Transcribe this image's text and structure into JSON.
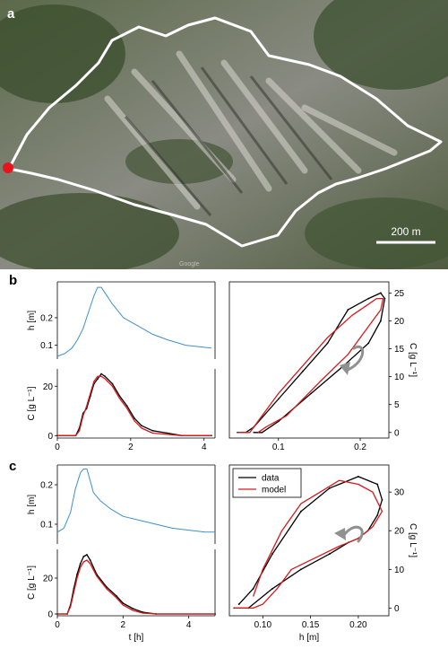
{
  "panel_a": {
    "letter": "a",
    "scale_bar_label": "200 m",
    "watermark": "Google",
    "outlet_color": "#e8141c",
    "outline_color": "#ffffff"
  },
  "chart_data": [
    {
      "id": "b-h",
      "panel": "b",
      "type": "line",
      "ylabel": "h [m]",
      "xlim": [
        0,
        4.3
      ],
      "ylim": [
        0.05,
        0.33
      ],
      "yticks": [
        0.1,
        0.2
      ],
      "ytick_labels": [
        "0.1",
        "0.2"
      ],
      "series": [
        {
          "color": "#3d8fd1",
          "x": [
            0,
            0.2,
            0.4,
            0.55,
            0.7,
            0.8,
            0.9,
            1.0,
            1.1,
            1.2,
            1.3,
            1.5,
            1.8,
            2.2,
            2.6,
            3.0,
            3.5,
            4.2
          ],
          "y": [
            0.06,
            0.07,
            0.09,
            0.12,
            0.16,
            0.2,
            0.24,
            0.28,
            0.31,
            0.31,
            0.29,
            0.25,
            0.2,
            0.17,
            0.14,
            0.12,
            0.1,
            0.09
          ]
        }
      ]
    },
    {
      "id": "b-C",
      "panel": "b",
      "type": "line",
      "ylabel": "C [g L⁻¹]",
      "xlim": [
        0,
        4.3
      ],
      "ylim": [
        -1,
        27
      ],
      "yticks": [
        0,
        20
      ],
      "ytick_labels": [
        "0",
        "20"
      ],
      "xticks": [
        0,
        2,
        4
      ],
      "xtick_labels": [
        "0",
        "2",
        "4"
      ],
      "series": [
        {
          "name": "data",
          "color": "#000000",
          "x": [
            0,
            0.5,
            0.6,
            0.7,
            0.8,
            0.9,
            1.0,
            1.1,
            1.2,
            1.3,
            1.5,
            1.7,
            1.9,
            2.1,
            2.3,
            2.6,
            3.0,
            3.4,
            4.2
          ],
          "y": [
            0,
            0,
            3,
            9,
            11,
            16,
            21,
            23,
            25,
            24,
            21,
            16,
            12,
            7,
            4,
            2,
            1,
            0,
            0
          ]
        },
        {
          "name": "model",
          "color": "#d7191c",
          "x": [
            0,
            0.5,
            0.6,
            0.7,
            0.8,
            0.9,
            1.0,
            1.1,
            1.2,
            1.3,
            1.5,
            1.7,
            1.9,
            2.1,
            2.3,
            2.6,
            3.0,
            3.4,
            4.2
          ],
          "y": [
            0,
            0,
            2,
            8,
            12,
            17,
            22,
            24,
            24,
            23,
            20,
            15,
            11,
            6,
            3,
            1,
            0.5,
            0,
            0
          ]
        }
      ]
    },
    {
      "id": "b-hys",
      "panel": "b",
      "type": "line",
      "ylabel": "C [g L⁻¹]",
      "xlim": [
        0.04,
        0.235
      ],
      "ylim": [
        -1,
        27
      ],
      "xticks": [
        0.1,
        0.2
      ],
      "xtick_labels": [
        "0.1",
        "0.2"
      ],
      "yticks": [
        0,
        5,
        10,
        15,
        20,
        25
      ],
      "ytick_labels": [
        "0",
        "5",
        "10",
        "15",
        "20",
        "25"
      ],
      "series": [
        {
          "name": "data",
          "color": "#000000",
          "x": [
            0.05,
            0.06,
            0.07,
            0.1,
            0.13,
            0.16,
            0.185,
            0.21,
            0.225,
            0.23,
            0.225,
            0.21,
            0.18,
            0.14,
            0.1,
            0.08,
            0.07
          ],
          "y": [
            0,
            0,
            1,
            6,
            11,
            16,
            22,
            24,
            25,
            24,
            20,
            16,
            12,
            7,
            2,
            0,
            0
          ]
        },
        {
          "name": "model",
          "color": "#d7191c",
          "x": [
            0.05,
            0.065,
            0.075,
            0.1,
            0.13,
            0.16,
            0.19,
            0.21,
            0.22,
            0.228,
            0.225,
            0.21,
            0.185,
            0.15,
            0.11,
            0.085,
            0.075
          ],
          "y": [
            0,
            0,
            2,
            7,
            12,
            17,
            21,
            23,
            24,
            24,
            22,
            19,
            14,
            9,
            3,
            1,
            0
          ]
        }
      ]
    },
    {
      "id": "c-h",
      "panel": "c",
      "type": "line",
      "ylabel": "h [m]",
      "xlim": [
        0,
        4.8
      ],
      "ylim": [
        0.05,
        0.25
      ],
      "yticks": [
        0.1,
        0.2
      ],
      "ytick_labels": [
        "0.1",
        "0.2"
      ],
      "series": [
        {
          "color": "#3d8fd1",
          "x": [
            0,
            0.2,
            0.4,
            0.55,
            0.7,
            0.8,
            0.9,
            1.0,
            1.1,
            1.3,
            1.6,
            2.0,
            2.5,
            3.0,
            3.5,
            4.0,
            4.5,
            4.8
          ],
          "y": [
            0.08,
            0.09,
            0.13,
            0.19,
            0.23,
            0.24,
            0.24,
            0.21,
            0.18,
            0.16,
            0.14,
            0.12,
            0.11,
            0.1,
            0.09,
            0.085,
            0.08,
            0.08
          ]
        }
      ]
    },
    {
      "id": "c-C",
      "panel": "c",
      "type": "line",
      "xlabel": "t [h]",
      "ylabel": "C [g L⁻¹]",
      "xlim": [
        0,
        4.8
      ],
      "ylim": [
        -1,
        36
      ],
      "yticks": [
        0,
        20
      ],
      "ytick_labels": [
        "0",
        "20"
      ],
      "xticks": [
        0,
        2,
        4
      ],
      "xtick_labels": [
        "0",
        "2",
        "4"
      ],
      "series": [
        {
          "name": "data",
          "color": "#000000",
          "x": [
            0,
            0.3,
            0.4,
            0.5,
            0.6,
            0.7,
            0.8,
            0.9,
            1.0,
            1.2,
            1.5,
            1.8,
            2.0,
            2.3,
            2.6,
            3.0,
            4.8
          ],
          "y": [
            0,
            0,
            5,
            14,
            22,
            28,
            32,
            33,
            30,
            22,
            15,
            10,
            6,
            3,
            1,
            0,
            0
          ]
        },
        {
          "name": "model",
          "color": "#d7191c",
          "x": [
            0,
            0.3,
            0.4,
            0.5,
            0.6,
            0.7,
            0.8,
            0.9,
            1.0,
            1.2,
            1.5,
            1.8,
            2.0,
            2.3,
            2.6,
            3.0,
            4.8
          ],
          "y": [
            0,
            0,
            4,
            12,
            20,
            26,
            29,
            30,
            28,
            21,
            14,
            9,
            5,
            2,
            0.5,
            0,
            0
          ]
        }
      ]
    },
    {
      "id": "c-hys",
      "panel": "c",
      "type": "line",
      "xlabel": "h [m]",
      "ylabel": "C [g L⁻¹]",
      "xlim": [
        0.065,
        0.232
      ],
      "ylim": [
        -2,
        37
      ],
      "xticks": [
        0.1,
        0.15,
        0.2
      ],
      "xtick_labels": [
        "0.10",
        "0.15",
        "0.20"
      ],
      "yticks": [
        0,
        10,
        20,
        30
      ],
      "ytick_labels": [
        "0",
        "10",
        "20",
        "30"
      ],
      "legend": {
        "placement": "top-left",
        "entries": [
          "data",
          "model"
        ]
      },
      "series": [
        {
          "name": "data",
          "color": "#000000",
          "x": [
            0.07,
            0.085,
            0.11,
            0.14,
            0.17,
            0.19,
            0.2,
            0.21,
            0.22,
            0.225,
            0.22,
            0.2,
            0.17,
            0.14,
            0.11,
            0.09,
            0.075
          ],
          "y": [
            0,
            0,
            5,
            10,
            14,
            17,
            18,
            20,
            24,
            28,
            32,
            34,
            31,
            25,
            14,
            5,
            1
          ]
        },
        {
          "name": "model",
          "color": "#d7191c",
          "x": [
            0.07,
            0.09,
            0.1,
            0.115,
            0.13,
            0.155,
            0.18,
            0.2,
            0.215,
            0.225,
            0.215,
            0.2,
            0.18,
            0.16,
            0.14,
            0.12,
            0.1,
            0.09
          ],
          "y": [
            0,
            0,
            1,
            5,
            10,
            13,
            16,
            18,
            21,
            25,
            30,
            32,
            33,
            30,
            27,
            20,
            10,
            3
          ]
        }
      ]
    }
  ]
}
